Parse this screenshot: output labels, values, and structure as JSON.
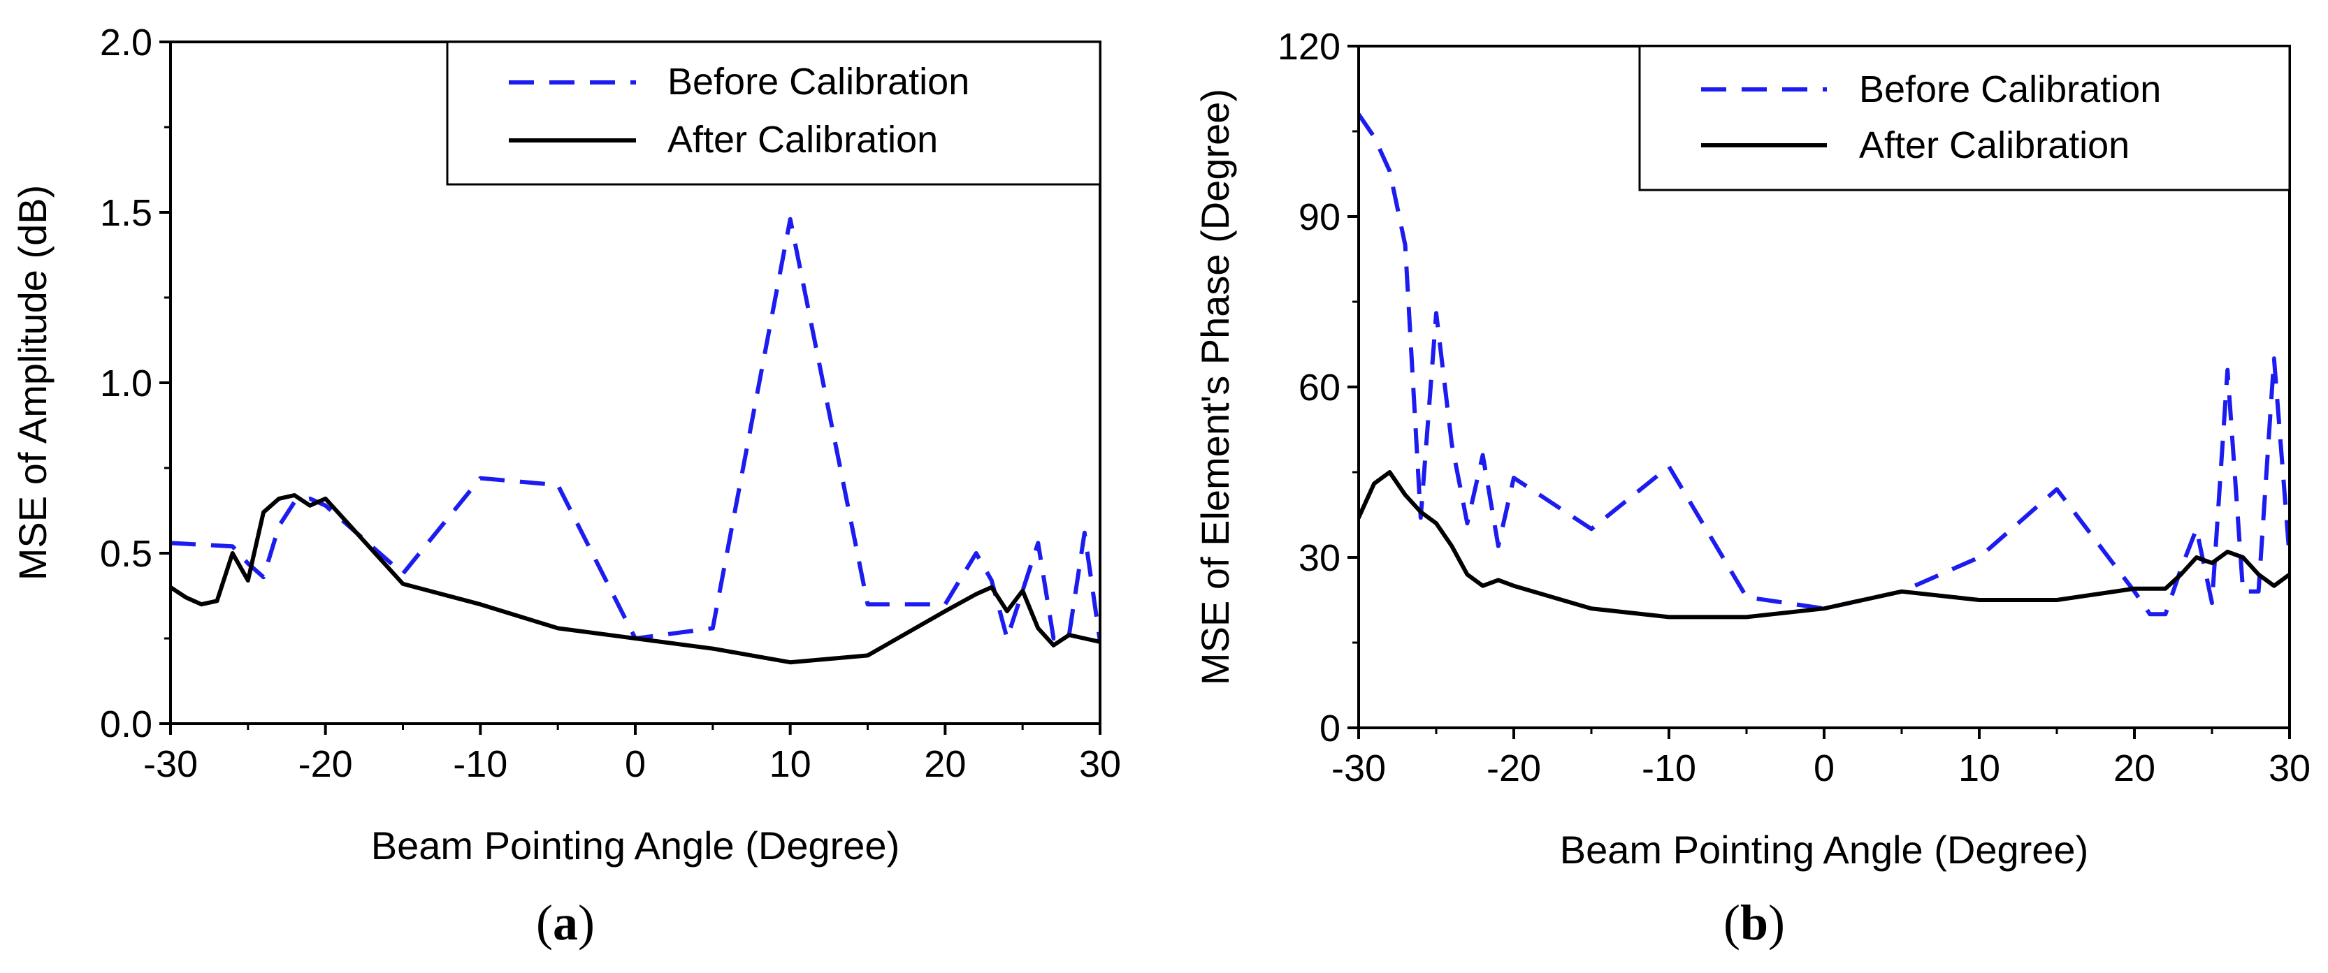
{
  "colors": {
    "before": "#1c1cf0",
    "after": "#000000",
    "axis": "#000000"
  },
  "chart_data": [
    {
      "type": "line",
      "panel_label": "(a)",
      "panel_letter": "a",
      "title": "",
      "xlabel": "Beam Pointing Angle (Degree)",
      "ylabel": "MSE of Amplitude (dB)",
      "xlim": [
        -30,
        30
      ],
      "ylim": [
        0.0,
        2.0
      ],
      "xticks": [
        -30,
        -20,
        -10,
        0,
        10,
        20,
        30
      ],
      "xtick_labels": [
        "-30",
        "-20",
        "-10",
        "0",
        "10",
        "20",
        "30"
      ],
      "yticks": [
        0.0,
        0.5,
        1.0,
        1.5,
        2.0
      ],
      "ytick_labels": [
        "0.0",
        "0.5",
        "1.0",
        "1.5",
        "2.0"
      ],
      "legend": {
        "position": "top-right",
        "entries": [
          "Before Calibration",
          "After Calibration"
        ]
      },
      "series": [
        {
          "name": "Before Calibration",
          "style": "dashed",
          "x": [
            -30,
            -26,
            -25,
            -24,
            -23,
            -22,
            -21,
            -20,
            -15,
            -10,
            -5,
            0,
            5,
            10,
            15,
            20,
            22,
            23,
            24,
            25,
            26,
            27,
            28,
            29,
            30
          ],
          "y": [
            0.53,
            0.52,
            0.47,
            0.43,
            0.58,
            0.65,
            0.66,
            0.64,
            0.44,
            0.72,
            0.7,
            0.25,
            0.28,
            1.48,
            0.35,
            0.35,
            0.5,
            0.42,
            0.25,
            0.39,
            0.53,
            0.25,
            0.26,
            0.56,
            0.24
          ]
        },
        {
          "name": "After Calibration",
          "style": "solid",
          "x": [
            -30,
            -29,
            -28,
            -27,
            -26,
            -25,
            -24,
            -23,
            -22,
            -21,
            -20,
            -15,
            -10,
            -5,
            0,
            5,
            10,
            15,
            20,
            22,
            23,
            24,
            25,
            26,
            27,
            28,
            29,
            30
          ],
          "y": [
            0.4,
            0.37,
            0.35,
            0.36,
            0.5,
            0.42,
            0.62,
            0.66,
            0.67,
            0.64,
            0.66,
            0.41,
            0.35,
            0.28,
            0.25,
            0.22,
            0.18,
            0.2,
            0.33,
            0.38,
            0.4,
            0.33,
            0.39,
            0.28,
            0.23,
            0.26,
            0.25,
            0.24
          ]
        }
      ]
    },
    {
      "type": "line",
      "panel_label": "(b)",
      "panel_letter": "b",
      "title": "",
      "xlabel": "Beam Pointing Angle (Degree)",
      "ylabel": "MSE of Element's Phase (Degree)",
      "xlim": [
        -30,
        30
      ],
      "ylim": [
        0,
        120
      ],
      "xticks": [
        -30,
        -20,
        -10,
        0,
        10,
        20,
        30
      ],
      "xtick_labels": [
        "-30",
        "-20",
        "-10",
        "0",
        "10",
        "20",
        "30"
      ],
      "yticks": [
        0,
        30,
        60,
        90,
        120
      ],
      "ytick_labels": [
        "0",
        "30",
        "60",
        "90",
        "120"
      ],
      "legend": {
        "position": "top-right",
        "entries": [
          "Before Calibration",
          "After Calibration"
        ]
      },
      "series": [
        {
          "name": "Before Calibration",
          "style": "dashed",
          "x": [
            -30,
            -29,
            -28,
            -27,
            -26,
            -25,
            -24,
            -23,
            -22,
            -21,
            -20,
            -15,
            -10,
            -5,
            0,
            5,
            10,
            15,
            20,
            21,
            22,
            23,
            24,
            25,
            26,
            27,
            28,
            29,
            30
          ],
          "y": [
            108,
            104,
            98,
            85,
            37,
            73,
            50,
            36,
            48,
            32,
            44,
            35,
            46,
            23,
            21,
            24,
            30,
            42,
            24,
            20,
            20,
            28,
            35,
            22,
            63,
            24,
            24,
            65,
            30
          ]
        },
        {
          "name": "After Calibration",
          "style": "solid",
          "x": [
            -30,
            -29,
            -28,
            -27,
            -26,
            -25,
            -24,
            -23,
            -22,
            -21,
            -20,
            -15,
            -10,
            -5,
            0,
            5,
            10,
            15,
            20,
            22,
            23,
            24,
            25,
            26,
            27,
            28,
            29,
            30
          ],
          "y": [
            37,
            43,
            45,
            41,
            38,
            36,
            32,
            27,
            25,
            26,
            25,
            21,
            19.5,
            19.5,
            21,
            24,
            22.5,
            22.5,
            24.5,
            24.5,
            27,
            30,
            29,
            31,
            30,
            27,
            25,
            27
          ]
        }
      ]
    }
  ]
}
